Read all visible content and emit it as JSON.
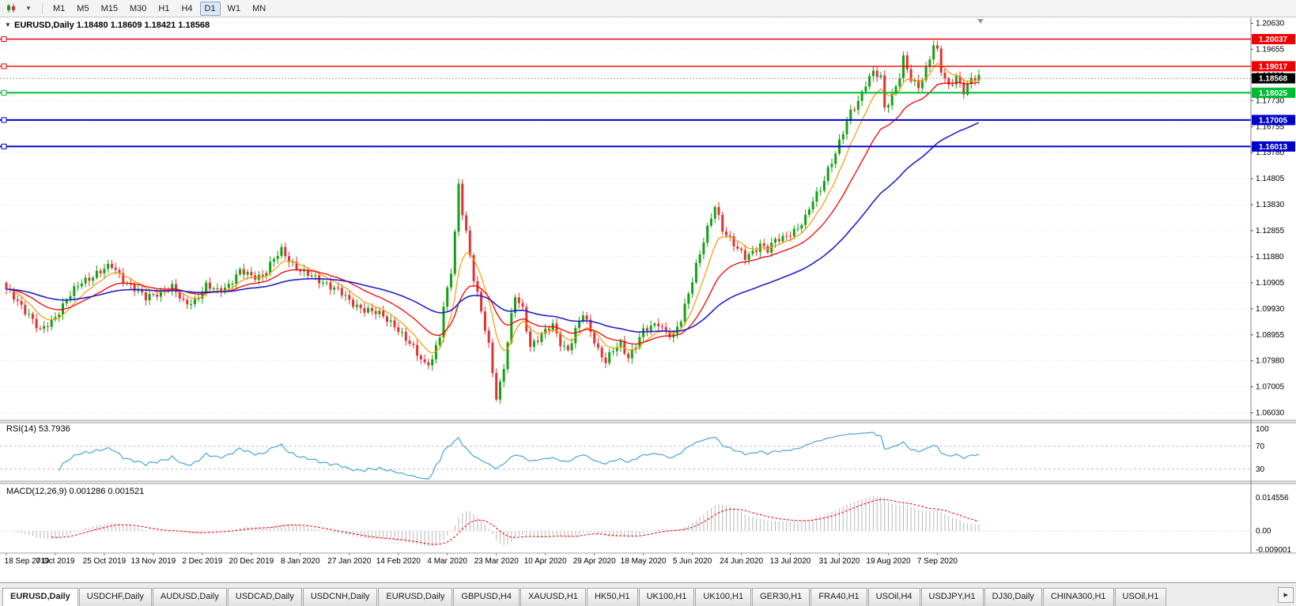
{
  "toolbar": {
    "timeframes": [
      "M1",
      "M5",
      "M15",
      "M30",
      "H1",
      "H4",
      "D1",
      "W1",
      "MN"
    ],
    "active_timeframe": "D1",
    "icons": [
      "chart-type-icon",
      "chart-type-dropdown-icon"
    ]
  },
  "chart": {
    "title_symbol": "EURUSD,Daily",
    "title_text": "EURUSD,Daily 1.18480 1.18609 1.18421 1.18568",
    "ohlc": {
      "open": "1.18480",
      "high": "1.18609",
      "low": "1.18421",
      "close": "1.18568"
    },
    "price_scale": [
      "1.20630",
      "1.19655",
      "1.18680",
      "1.17730",
      "1.16755",
      "1.15780",
      "1.14805",
      "1.13830",
      "1.12855",
      "1.11880",
      "1.10905",
      "1.09930",
      "1.08955",
      "1.07980",
      "1.07005",
      "1.06030"
    ],
    "date_scale": [
      "18 Sep 2019",
      "7 Oct 2019",
      "25 Oct 2019",
      "13 Nov 2019",
      "2 Dec 2019",
      "20 Dec 2019",
      "8 Jan 2020",
      "27 Jan 2020",
      "14 Feb 2020",
      "4 Mar 2020",
      "23 Mar 2020",
      "10 Apr 2020",
      "29 Apr 2020",
      "18 May 2020",
      "5 Jun 2020",
      "24 Jun 2020",
      "13 Jul 2020",
      "31 Jul 2020",
      "19 Aug 2020",
      "7 Sep 2020"
    ],
    "levels": [
      {
        "price": "1.20037",
        "color": "#ee0000",
        "thickness": 1.4,
        "role": "resistance"
      },
      {
        "price": "1.19017",
        "color": "#ee0000",
        "thickness": 1.4,
        "role": "resistance"
      },
      {
        "price": "1.18025",
        "color": "#00bb33",
        "thickness": 2,
        "role": "support"
      },
      {
        "price": "1.17005",
        "color": "#0000cc",
        "thickness": 2,
        "role": "support"
      },
      {
        "price": "1.16013",
        "color": "#0000cc",
        "thickness": 2,
        "role": "support"
      }
    ],
    "bid_tag": {
      "price": "1.18568",
      "color": "#000000"
    }
  },
  "indicators": {
    "rsi": {
      "name": "RSI(14)",
      "value": "53.7936",
      "label_text": "RSI(14) 53.7936",
      "scale": [
        "100",
        "70",
        "30"
      ],
      "line_color": "#4aa3dc"
    },
    "macd": {
      "name": "MACD(12,26,9)",
      "values": [
        "0.001286",
        "0.001521"
      ],
      "label_text": "MACD(12,26,9) 0.001286 0.001521",
      "scale": [
        "0.014556",
        "0.00",
        "-0.009001"
      ],
      "histogram_color": "#b8b8b8",
      "signal_color": "#ee0000"
    }
  },
  "chart_data": {
    "type": "candlestick",
    "symbol": "EURUSD",
    "timeframe": "Daily",
    "candle_count": 259,
    "bars_per_label": 13,
    "y_range": [
      1.0575,
      1.2085
    ],
    "x_labels": [
      "18 Sep 2019",
      "7 Oct 2019",
      "25 Oct 2019",
      "13 Nov 2019",
      "2 Dec 2019",
      "20 Dec 2019",
      "8 Jan 2020",
      "27 Jan 2020",
      "14 Feb 2020",
      "4 Mar 2020",
      "23 Mar 2020",
      "10 Apr 2020",
      "29 Apr 2020",
      "18 May 2020",
      "5 Jun 2020",
      "24 Jun 2020",
      "13 Jul 2020",
      "31 Jul 2020",
      "19 Aug 2020",
      "7 Sep 2020"
    ],
    "up_color": "#14a014",
    "down_color": "#e03232",
    "close_anchors": [
      [
        0,
        1.106
      ],
      [
        3,
        1.102
      ],
      [
        6,
        1.0975
      ],
      [
        9,
        1.0905
      ],
      [
        12,
        1.0945
      ],
      [
        16,
        1.103
      ],
      [
        20,
        1.109
      ],
      [
        24,
        1.113
      ],
      [
        28,
        1.115
      ],
      [
        31,
        1.1105
      ],
      [
        34,
        1.107
      ],
      [
        37,
        1.103
      ],
      [
        40,
        1.1055
      ],
      [
        44,
        1.107
      ],
      [
        47,
        1.1015
      ],
      [
        50,
        1.1025
      ],
      [
        53,
        1.1075
      ],
      [
        56,
        1.106
      ],
      [
        59,
        1.1085
      ],
      [
        62,
        1.113
      ],
      [
        65,
        1.1115
      ],
      [
        68,
        1.112
      ],
      [
        71,
        1.1175
      ],
      [
        73,
        1.121
      ],
      [
        76,
        1.1165
      ],
      [
        79,
        1.1125
      ],
      [
        82,
        1.1105
      ],
      [
        85,
        1.109
      ],
      [
        88,
        1.106
      ],
      [
        91,
        1.102
      ],
      [
        94,
        1.1
      ],
      [
        97,
        1.098
      ],
      [
        100,
        1.0965
      ],
      [
        103,
        1.0935
      ],
      [
        106,
        1.0875
      ],
      [
        109,
        1.0825
      ],
      [
        111,
        1.079
      ],
      [
        113,
        1.0805
      ],
      [
        115,
        1.089
      ],
      [
        116,
        1.099
      ],
      [
        118,
        1.1135
      ],
      [
        119,
        1.128
      ],
      [
        120,
        1.1465
      ],
      [
        121,
        1.136
      ],
      [
        122,
        1.128
      ],
      [
        124,
        1.11
      ],
      [
        126,
        1.098
      ],
      [
        128,
        1.086
      ],
      [
        130,
        1.0665
      ],
      [
        131,
        1.071
      ],
      [
        132,
        1.077
      ],
      [
        134,
        1.096
      ],
      [
        135,
        1.104
      ],
      [
        137,
        1.0995
      ],
      [
        139,
        1.0855
      ],
      [
        141,
        1.0875
      ],
      [
        143,
        1.0905
      ],
      [
        145,
        1.0935
      ],
      [
        147,
        1.087
      ],
      [
        149,
        1.0835
      ],
      [
        151,
        1.0905
      ],
      [
        153,
        1.0975
      ],
      [
        155,
        1.0915
      ],
      [
        157,
        1.084
      ],
      [
        159,
        1.079
      ],
      [
        161,
        1.0835
      ],
      [
        163,
        1.0865
      ],
      [
        165,
        1.0815
      ],
      [
        167,
        1.0855
      ],
      [
        169,
        1.0905
      ],
      [
        171,
        1.0925
      ],
      [
        173,
        1.0945
      ],
      [
        175,
        1.0905
      ],
      [
        177,
        1.0885
      ],
      [
        179,
        1.095
      ],
      [
        181,
        1.1055
      ],
      [
        183,
        1.116
      ],
      [
        185,
        1.1245
      ],
      [
        187,
        1.133
      ],
      [
        188,
        1.1375
      ],
      [
        190,
        1.1295
      ],
      [
        192,
        1.126
      ],
      [
        194,
        1.1215
      ],
      [
        196,
        1.118
      ],
      [
        198,
        1.1205
      ],
      [
        200,
        1.124
      ],
      [
        202,
        1.1215
      ],
      [
        204,
        1.1245
      ],
      [
        206,
        1.1255
      ],
      [
        208,
        1.128
      ],
      [
        210,
        1.13
      ],
      [
        212,
        1.133
      ],
      [
        214,
        1.1395
      ],
      [
        216,
        1.1445
      ],
      [
        218,
        1.152
      ],
      [
        220,
        1.1575
      ],
      [
        222,
        1.165
      ],
      [
        224,
        1.173
      ],
      [
        226,
        1.1775
      ],
      [
        228,
        1.184
      ],
      [
        230,
        1.1875
      ],
      [
        232,
        1.1855
      ],
      [
        233,
        1.1745
      ],
      [
        235,
        1.1795
      ],
      [
        237,
        1.187
      ],
      [
        238,
        1.193
      ],
      [
        240,
        1.1845
      ],
      [
        242,
        1.1825
      ],
      [
        244,
        1.1895
      ],
      [
        246,
        1.1985
      ],
      [
        247,
        1.1955
      ],
      [
        248,
        1.188
      ],
      [
        250,
        1.182
      ],
      [
        252,
        1.1868
      ],
      [
        254,
        1.1812
      ],
      [
        256,
        1.185
      ],
      [
        258,
        1.1856
      ]
    ],
    "moving_averages": [
      {
        "name": "ma-fast",
        "period": 8,
        "color": "#ff9800",
        "width": 1.2
      },
      {
        "name": "ma-mid",
        "period": 21,
        "color": "#f50000",
        "width": 1.3
      },
      {
        "name": "ma-slow",
        "period": 55,
        "color": "#2020cc",
        "width": 1.6
      }
    ],
    "levels": [
      1.20037,
      1.19017,
      1.18025,
      1.17005,
      1.16013
    ],
    "current": {
      "open": 1.1848,
      "high": 1.18609,
      "low": 1.18421,
      "close": 1.18568
    }
  },
  "tabs": {
    "items": [
      "EURUSD,Daily",
      "USDCHF,Daily",
      "AUDUSD,Daily",
      "USDCAD,Daily",
      "USDCNH,Daily",
      "EURUSD,Daily",
      "GBPUSD,H4",
      "XAUUSD,H1",
      "HK50,H1",
      "UK100,H1",
      "UK100,H1",
      "GER30,H1",
      "FRA40,H1",
      "USOil,H4",
      "USDJPY,H1",
      "DJ30,Daily",
      "CHINA300,H1",
      "USOil,H1"
    ],
    "active_index": 0,
    "scroll_icon": "▸"
  }
}
